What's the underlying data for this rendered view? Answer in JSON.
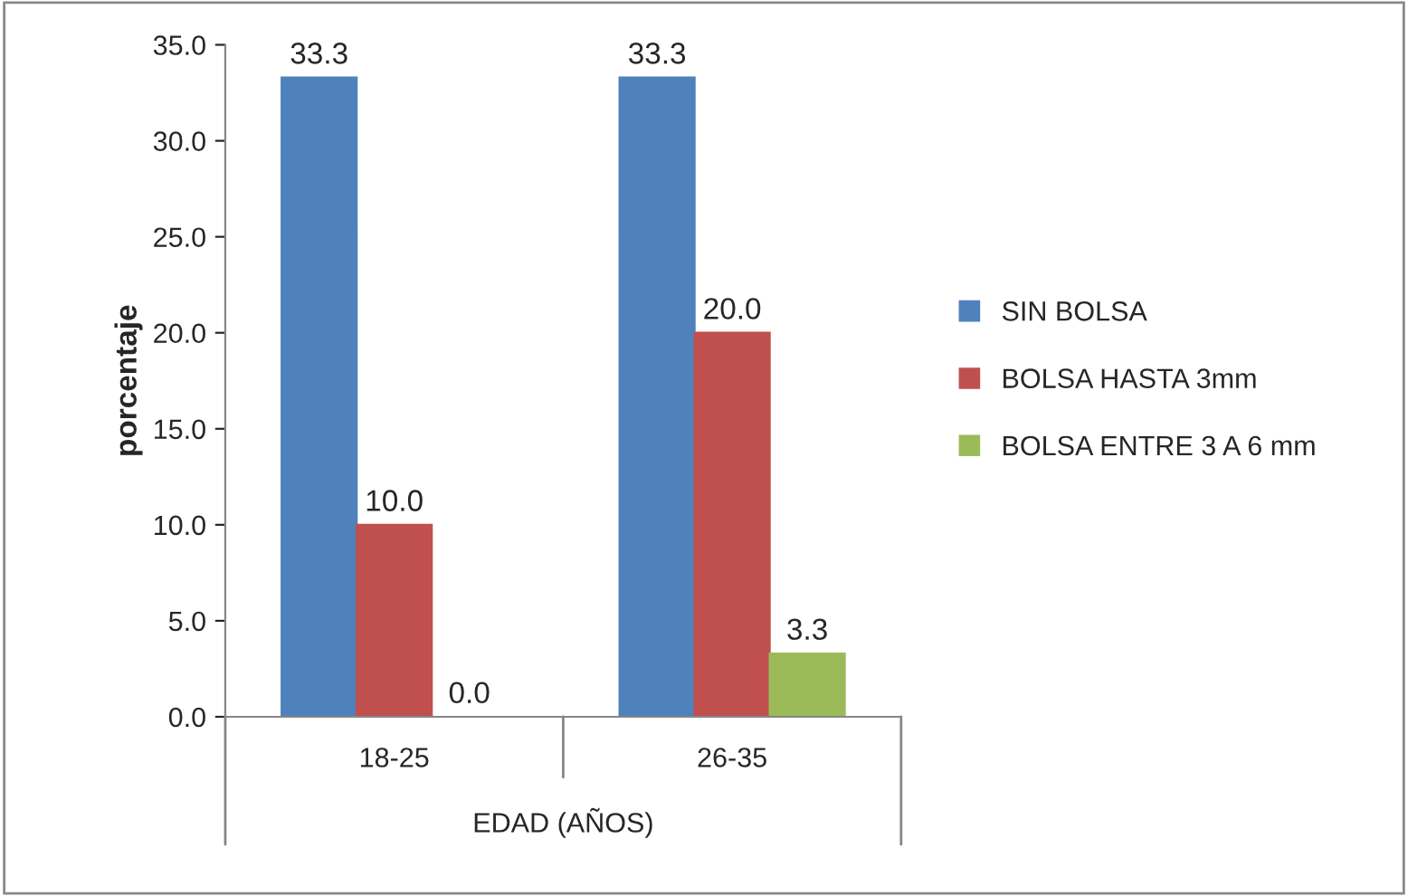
{
  "chart_data": {
    "type": "bar",
    "ylabel": "porcentaje",
    "xlabel": "EDAD (AÑOS)",
    "categories": [
      "18-25",
      "26-35"
    ],
    "series": [
      {
        "name": "SIN BOLSA",
        "color": "#4f81bd",
        "values": [
          33.3,
          33.3
        ],
        "value_labels": [
          "33.3",
          "33.3"
        ]
      },
      {
        "name": "BOLSA HASTA 3mm",
        "color": "#c0504d",
        "values": [
          10.0,
          20.0
        ],
        "value_labels": [
          "10.0",
          "20.0"
        ]
      },
      {
        "name": "BOLSA ENTRE 3 A 6 mm",
        "color": "#9bbb59",
        "values": [
          0.0,
          3.3
        ],
        "value_labels": [
          "0.0",
          "3.3"
        ]
      }
    ],
    "ylim": [
      0,
      35
    ],
    "yticks": [
      {
        "value": 0,
        "label": "0.0"
      },
      {
        "value": 5,
        "label": "5.0"
      },
      {
        "value": 10,
        "label": "10.0"
      },
      {
        "value": 15,
        "label": "15.0"
      },
      {
        "value": 20,
        "label": "20.0"
      },
      {
        "value": 25,
        "label": "25.0"
      },
      {
        "value": 30,
        "label": "30.0"
      },
      {
        "value": 35,
        "label": "35.0"
      }
    ],
    "grid": false,
    "legend": "right"
  }
}
